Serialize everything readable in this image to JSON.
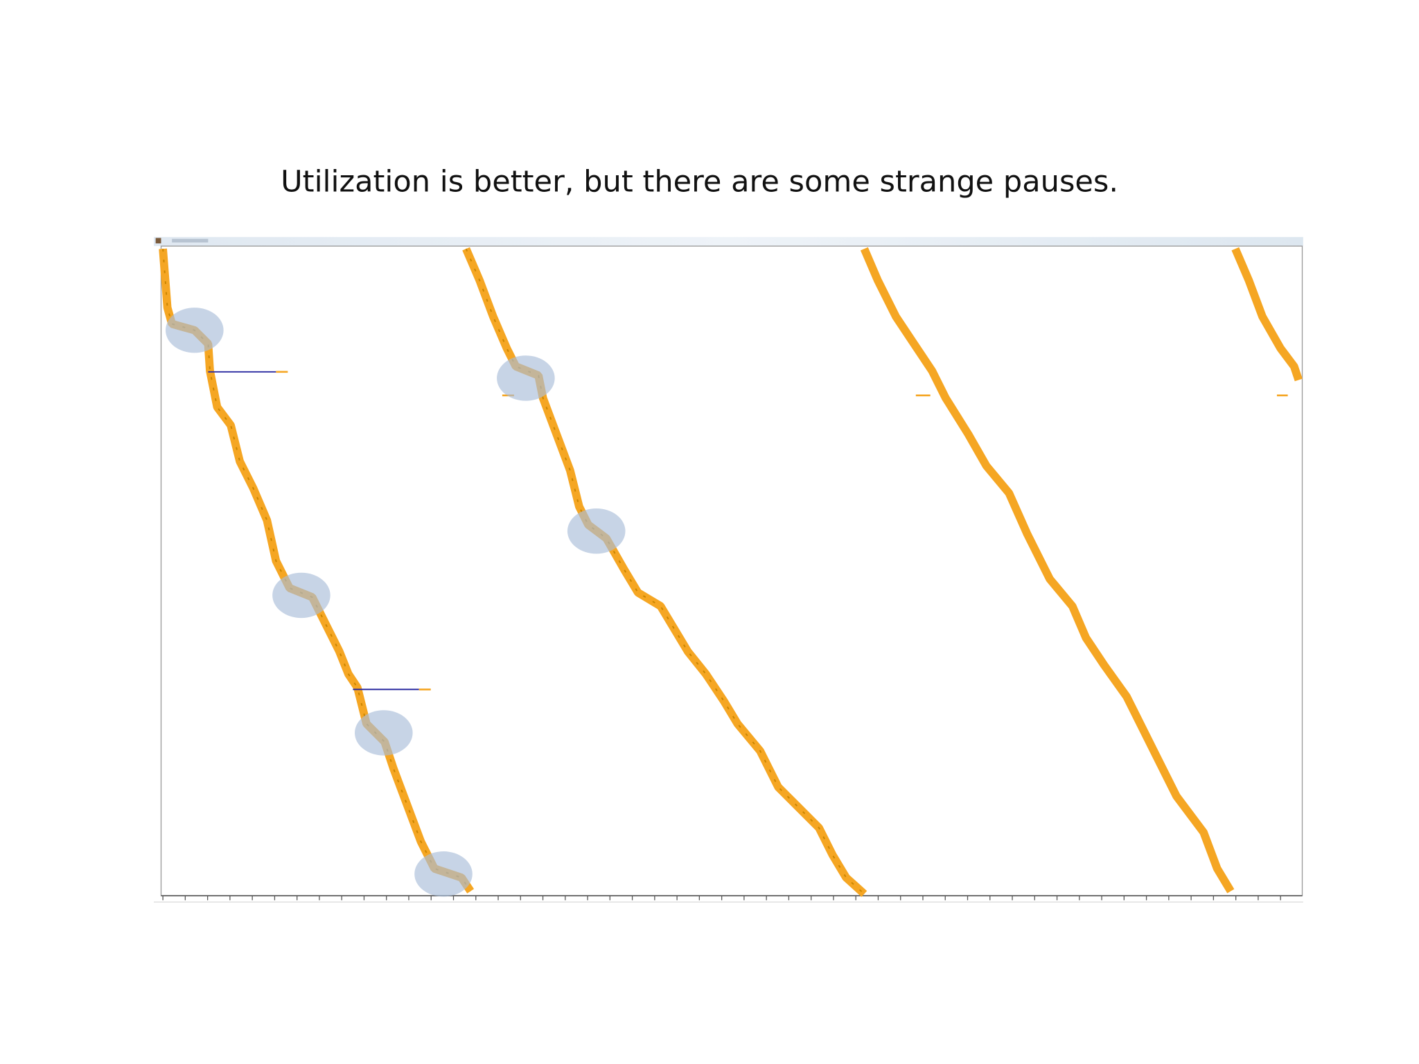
{
  "slide": {
    "title": "Utilization is better, but there are some strange pauses."
  }
}
